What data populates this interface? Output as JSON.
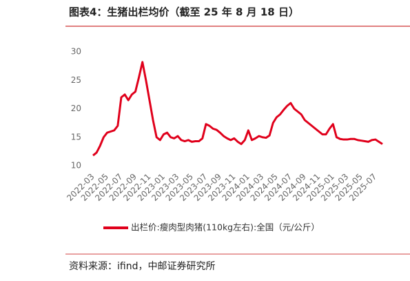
{
  "chart_data": {
    "type": "line",
    "title": "图表4：生猪出栏均价（截至 25 年 8 月 18 日）",
    "source": "资料来源：ifind，中邮证券研究所",
    "categories": [
      "2022-03",
      null,
      null,
      null,
      "2022-05",
      null,
      null,
      null,
      "2022-07",
      null,
      null,
      null,
      "2022-09",
      null,
      null,
      null,
      "2022-11",
      null,
      null,
      null,
      "2023-01",
      null,
      null,
      null,
      "2023-03",
      null,
      null,
      null,
      "2023-05",
      null,
      null,
      null,
      "2023-07",
      null,
      null,
      null,
      "2023-09",
      null,
      null,
      null,
      "2023-11",
      null,
      null,
      null,
      "2024-01",
      null,
      null,
      null,
      "2024-03",
      null,
      null,
      null,
      "2024-05",
      null,
      null,
      null,
      "2024-07",
      null,
      null,
      null,
      "2024-09",
      null,
      null,
      null,
      "2024-11",
      null,
      null,
      null,
      "2025-01",
      null,
      null,
      null,
      "2025-03",
      null,
      null,
      null,
      "2025-05",
      null,
      null,
      null,
      "2025-07",
      null,
      null
    ],
    "series": [
      {
        "name": "出栏价:瘦肉型肉猪(110kg左右):全国（元/公斤）",
        "color": "#e0001b",
        "values": [
          11.8,
          12.3,
          13.5,
          15.0,
          15.8,
          16.0,
          16.2,
          17.0,
          22.0,
          22.5,
          21.5,
          22.5,
          23.0,
          25.5,
          28.2,
          25.0,
          21.5,
          18.0,
          15.0,
          14.5,
          15.5,
          15.8,
          15.0,
          14.8,
          15.2,
          14.5,
          14.3,
          14.5,
          14.2,
          14.3,
          14.3,
          14.8,
          17.3,
          17.0,
          16.5,
          16.3,
          15.8,
          15.2,
          14.8,
          14.5,
          14.8,
          14.2,
          13.8,
          14.5,
          16.2,
          14.5,
          14.8,
          15.2,
          15.0,
          14.9,
          15.3,
          17.5,
          18.5,
          19.0,
          19.8,
          20.5,
          21.0,
          20.0,
          19.5,
          19.0,
          18.0,
          17.5,
          17.0,
          16.5,
          16.0,
          15.5,
          15.5,
          16.5,
          17.3,
          15.0,
          14.7,
          14.6,
          14.6,
          14.7,
          14.7,
          14.5,
          14.4,
          14.3,
          14.2,
          14.5,
          14.6,
          14.2,
          13.8
        ]
      }
    ],
    "ylim": [
      10,
      30
    ],
    "yticks": [
      10,
      15,
      20,
      25,
      30
    ],
    "grid": false,
    "legend": "bottom"
  }
}
